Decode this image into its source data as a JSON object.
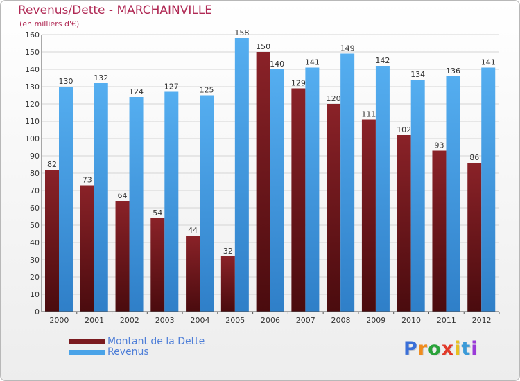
{
  "title": "Revenus/Dette - MARCHAINVILLE",
  "subtitle": "(en milliers d'€)",
  "logo": {
    "text": "Proxiti",
    "colors": [
      "#3a6fd8",
      "#f08c1e",
      "#2aa33a",
      "#e23a2a",
      "#e8c020",
      "#3a9ad8",
      "#9a3ad8"
    ]
  },
  "colors": {
    "dette": "#7a1a1f",
    "revenus": "#4aa3e8",
    "title": "#b02a55",
    "legend_text": "#4f7fd8"
  },
  "chart_data": {
    "type": "bar",
    "categories": [
      "2000",
      "2001",
      "2002",
      "2003",
      "2004",
      "2005",
      "2006",
      "2007",
      "2008",
      "2009",
      "2010",
      "2011",
      "2012"
    ],
    "series": [
      {
        "name": "Montant de la Dette",
        "values": [
          82,
          73,
          64,
          54,
          44,
          32,
          150,
          129,
          120,
          111,
          102,
          93,
          86
        ],
        "color": "#7a1a1f"
      },
      {
        "name": "Revenus",
        "values": [
          130,
          132,
          124,
          127,
          125,
          158,
          140,
          141,
          149,
          142,
          134,
          136,
          141
        ],
        "color": "#4aa3e8"
      }
    ],
    "ylim": [
      0,
      160
    ],
    "yticks": [
      0,
      10,
      20,
      30,
      40,
      50,
      60,
      70,
      80,
      90,
      100,
      110,
      120,
      130,
      140,
      150,
      160
    ],
    "grid": true,
    "legend_position": "bottom-left"
  }
}
